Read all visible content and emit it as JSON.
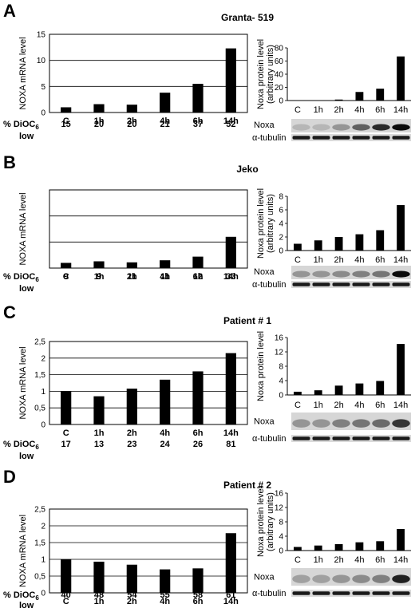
{
  "figure": {
    "panels": [
      {
        "letter": "A",
        "title": "Granta- 519",
        "mrna": {
          "ylabel": "NOXA mRNA level",
          "ylim": [
            0,
            15
          ],
          "yticks": [
            "0",
            "5",
            "10",
            "15"
          ],
          "categories": [
            "C",
            "1h",
            "2h",
            "4h",
            "6h",
            "14h"
          ],
          "values": [
            1.0,
            1.6,
            1.5,
            3.8,
            5.5,
            12.3
          ]
        },
        "dioc": {
          "label": "% DiOC",
          "subscript": "6",
          "label2": "low",
          "values": [
            "15",
            "20",
            "20",
            "21",
            "37",
            "52"
          ]
        },
        "protein": {
          "ylabel1": "Noxa protein level",
          "ylabel2": "(arbitrary units)",
          "ylim": [
            0,
            80
          ],
          "yticks": [
            "0",
            "20",
            "40",
            "60",
            "80"
          ],
          "categories": [
            "C",
            "1h",
            "2h",
            "4h",
            "6h",
            "14h"
          ],
          "values": [
            0,
            0,
            1.5,
            13,
            18,
            67
          ]
        },
        "blot": {
          "noxa_label": "Noxa",
          "tubulin_label": "α-tubulin",
          "noxa_intensity": [
            0.15,
            0.15,
            0.3,
            0.55,
            0.8,
            0.95
          ]
        }
      },
      {
        "letter": "B",
        "title": "Jeko",
        "mrna": {
          "ylabel": "NOXA mRNA level",
          "ylim": [
            0,
            15
          ],
          "yticks": [
            "",
            "",
            "",
            ""
          ],
          "categories": [
            "C",
            "1h",
            "2h",
            "4h",
            "6h",
            "14h"
          ],
          "values": [
            1.0,
            1.3,
            1.1,
            1.5,
            2.2,
            6.0
          ]
        },
        "dioc": {
          "label": "% DiOC",
          "subscript": "6",
          "label2": "low",
          "values": [
            "9",
            "9",
            "11",
            "11",
            "12",
            "33"
          ]
        },
        "protein": {
          "ylabel1": "Noxa protein level",
          "ylabel2": "(arbitrary units)",
          "ylim": [
            0,
            8
          ],
          "yticks": [
            "0",
            "2",
            "4",
            "6",
            "8"
          ],
          "categories": [
            "C",
            "1h",
            "2h",
            "4h",
            "6h",
            "14h"
          ],
          "values": [
            1.0,
            1.5,
            2.0,
            2.4,
            3.0,
            6.7
          ]
        },
        "blot": {
          "noxa_label": "Noxa",
          "tubulin_label": "α-tubulin",
          "noxa_intensity": [
            0.3,
            0.3,
            0.35,
            0.4,
            0.45,
            0.95
          ]
        }
      },
      {
        "letter": "C",
        "title": "Patient # 1",
        "mrna": {
          "ylabel": "NOXA mRNA level",
          "ylim": [
            0,
            2.5
          ],
          "yticks": [
            "0",
            "0,5",
            "1",
            "1,5",
            "2",
            "2,5"
          ],
          "categories": [
            "C",
            "1h",
            "2h",
            "4h",
            "6h",
            "14h"
          ],
          "values": [
            1.0,
            0.85,
            1.08,
            1.35,
            1.6,
            2.15
          ]
        },
        "dioc": {
          "label": "% DiOC",
          "subscript": "6",
          "label2": "low",
          "values": [
            "17",
            "13",
            "23",
            "24",
            "26",
            "81"
          ]
        },
        "protein": {
          "ylabel1": "Noxa protein level",
          "ylabel2": "",
          "ylim": [
            0,
            16
          ],
          "yticks": [
            "0",
            "4",
            "8",
            "12",
            "16"
          ],
          "categories": [
            "C",
            "1h",
            "2h",
            "4h",
            "6h",
            "14h"
          ],
          "values": [
            0.9,
            1.3,
            2.6,
            3.2,
            3.9,
            14.2
          ]
        },
        "blot": {
          "noxa_label": "Noxa",
          "tubulin_label": "α-tubulin",
          "noxa_intensity": [
            0.3,
            0.3,
            0.4,
            0.45,
            0.5,
            0.75
          ]
        }
      },
      {
        "letter": "D",
        "title": "Patient # 2",
        "mrna": {
          "ylabel": "NOXA mRNA level",
          "ylim": [
            0,
            2.5
          ],
          "yticks": [
            "0",
            "0,5",
            "1",
            "1,5",
            "2",
            "2,5"
          ],
          "categories": [
            "C",
            "1h",
            "2h",
            "4h",
            "6h",
            "14h"
          ],
          "values": [
            1.0,
            0.93,
            0.84,
            0.7,
            0.73,
            1.78
          ]
        },
        "dioc": {
          "label": "% DiOC",
          "subscript": "6",
          "label2": "low",
          "values": [
            "40",
            "48",
            "54",
            "55",
            "58",
            "61"
          ]
        },
        "protein": {
          "ylabel1": "Noxa protein level",
          "ylabel2": "(arbitrary units)",
          "ylim": [
            0,
            16
          ],
          "yticks": [
            "0",
            "4",
            "8",
            "12",
            "16"
          ],
          "categories": [
            "C",
            "1h",
            "2h",
            "4h",
            "6h",
            "14h"
          ],
          "values": [
            1.0,
            1.4,
            1.8,
            2.3,
            2.6,
            6.0
          ]
        },
        "blot": {
          "noxa_label": "Noxa",
          "tubulin_label": "α-tubulin",
          "noxa_intensity": [
            0.25,
            0.25,
            0.3,
            0.35,
            0.4,
            0.85
          ]
        }
      }
    ]
  },
  "chart_data": [
    {
      "type": "bar",
      "title": "Granta- 519",
      "ylabel": "NOXA mRNA level",
      "ylim": [
        0,
        15
      ],
      "categories": [
        "C",
        "1h",
        "2h",
        "4h",
        "6h",
        "14h"
      ],
      "values": [
        1.0,
        1.6,
        1.5,
        3.8,
        5.5,
        12.3
      ]
    },
    {
      "type": "bar",
      "ylabel": "Noxa protein level (arbitrary units)",
      "ylim": [
        0,
        80
      ],
      "categories": [
        "C",
        "1h",
        "2h",
        "4h",
        "6h",
        "14h"
      ],
      "values": [
        0,
        0,
        1.5,
        13,
        18,
        67
      ]
    },
    {
      "type": "bar",
      "title": "Jeko",
      "ylabel": "NOXA mRNA level",
      "ylim": [
        0,
        15
      ],
      "categories": [
        "C",
        "1h",
        "2h",
        "4h",
        "6h",
        "14h"
      ],
      "values": [
        1.0,
        1.3,
        1.1,
        1.5,
        2.2,
        6.0
      ]
    },
    {
      "type": "bar",
      "ylabel": "Noxa protein level (arbitrary units)",
      "ylim": [
        0,
        8
      ],
      "categories": [
        "C",
        "1h",
        "2h",
        "4h",
        "6h",
        "14h"
      ],
      "values": [
        1.0,
        1.5,
        2.0,
        2.4,
        3.0,
        6.7
      ]
    },
    {
      "type": "bar",
      "title": "Patient # 1",
      "ylabel": "NOXA mRNA level",
      "ylim": [
        0,
        2.5
      ],
      "categories": [
        "C",
        "1h",
        "2h",
        "4h",
        "6h",
        "14h"
      ],
      "values": [
        1.0,
        0.85,
        1.08,
        1.35,
        1.6,
        2.15
      ]
    },
    {
      "type": "bar",
      "ylabel": "Noxa protein level",
      "ylim": [
        0,
        16
      ],
      "categories": [
        "C",
        "1h",
        "2h",
        "4h",
        "6h",
        "14h"
      ],
      "values": [
        0.9,
        1.3,
        2.6,
        3.2,
        3.9,
        14.2
      ]
    },
    {
      "type": "bar",
      "title": "Patient # 2",
      "ylabel": "NOXA mRNA level",
      "ylim": [
        0,
        2.5
      ],
      "categories": [
        "C",
        "1h",
        "2h",
        "4h",
        "6h",
        "14h"
      ],
      "values": [
        1.0,
        0.93,
        0.84,
        0.7,
        0.73,
        1.78
      ]
    },
    {
      "type": "bar",
      "ylabel": "Noxa protein level (arbitrary units)",
      "ylim": [
        0,
        16
      ],
      "categories": [
        "C",
        "1h",
        "2h",
        "4h",
        "6h",
        "14h"
      ],
      "values": [
        1.0,
        1.4,
        1.8,
        2.3,
        2.6,
        6.0
      ]
    }
  ]
}
